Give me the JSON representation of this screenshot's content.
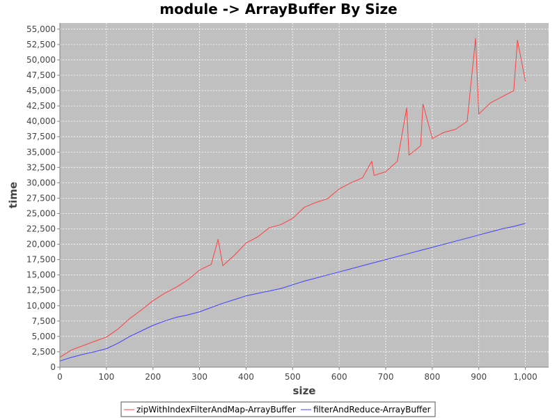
{
  "chart_data": {
    "type": "line",
    "title": "module -> ArrayBuffer By Size",
    "xlabel": "size",
    "ylabel": "time",
    "xlim": [
      0,
      1050
    ],
    "ylim": [
      0,
      56000
    ],
    "x_ticks": [
      0,
      100,
      200,
      300,
      400,
      500,
      600,
      700,
      800,
      900,
      1000
    ],
    "x_tick_labels": [
      "0",
      "100",
      "200",
      "300",
      "400",
      "500",
      "600",
      "700",
      "800",
      "900",
      "1,000"
    ],
    "y_ticks": [
      0,
      2500,
      5000,
      7500,
      10000,
      12500,
      15000,
      17500,
      20000,
      22500,
      25000,
      27500,
      30000,
      32500,
      35000,
      37500,
      40000,
      42500,
      45000,
      47500,
      50000,
      52500,
      55000
    ],
    "y_tick_labels": [
      "0",
      "2,500",
      "5,000",
      "7,500",
      "10,000",
      "12,500",
      "15,000",
      "17,500",
      "20,000",
      "22,500",
      "25,000",
      "27,500",
      "30,000",
      "32,500",
      "35,000",
      "37,500",
      "40,000",
      "42,500",
      "45,000",
      "47,500",
      "50,000",
      "52,500",
      "55,000"
    ],
    "grid": true,
    "legend_position": "bottom",
    "background": "#c0c0c0",
    "series": [
      {
        "name": "zipWithIndexFilterAndMap-ArrayBuffer",
        "color": "#ff4040",
        "x": [
          0,
          25,
          50,
          75,
          100,
          125,
          150,
          175,
          200,
          225,
          250,
          275,
          300,
          325,
          340,
          350,
          375,
          400,
          425,
          450,
          475,
          500,
          525,
          550,
          575,
          600,
          625,
          650,
          670,
          675,
          700,
          725,
          745,
          750,
          775,
          780,
          800,
          825,
          850,
          875,
          893,
          900,
          925,
          950,
          975,
          983,
          1000
        ],
        "y": [
          1600,
          2800,
          3500,
          4200,
          4900,
          6200,
          7900,
          9300,
          10800,
          12000,
          13000,
          14200,
          15800,
          16700,
          20800,
          16500,
          18200,
          20200,
          21200,
          22700,
          23200,
          24200,
          26000,
          26800,
          27400,
          29000,
          30000,
          30800,
          33500,
          31200,
          31800,
          33500,
          42200,
          34500,
          36000,
          42800,
          37200,
          38200,
          38700,
          40000,
          53500,
          41200,
          43000,
          44000,
          45000,
          53200,
          46500
        ]
      },
      {
        "name": "filterAndReduce-ArrayBuffer",
        "color": "#4040ff",
        "x": [
          0,
          25,
          50,
          75,
          100,
          125,
          150,
          175,
          200,
          225,
          250,
          275,
          300,
          325,
          350,
          375,
          400,
          425,
          450,
          475,
          500,
          525,
          550,
          575,
          600,
          625,
          650,
          675,
          700,
          725,
          750,
          775,
          800,
          825,
          850,
          875,
          900,
          925,
          950,
          975,
          1000
        ],
        "y": [
          1000,
          1600,
          2100,
          2500,
          3000,
          3900,
          5000,
          5900,
          6800,
          7500,
          8100,
          8500,
          9000,
          9700,
          10400,
          11000,
          11600,
          12000,
          12400,
          12800,
          13400,
          14000,
          14500,
          15000,
          15500,
          16000,
          16500,
          17000,
          17500,
          18000,
          18500,
          19000,
          19500,
          20000,
          20500,
          21000,
          21500,
          22000,
          22500,
          22900,
          23400
        ]
      }
    ]
  }
}
